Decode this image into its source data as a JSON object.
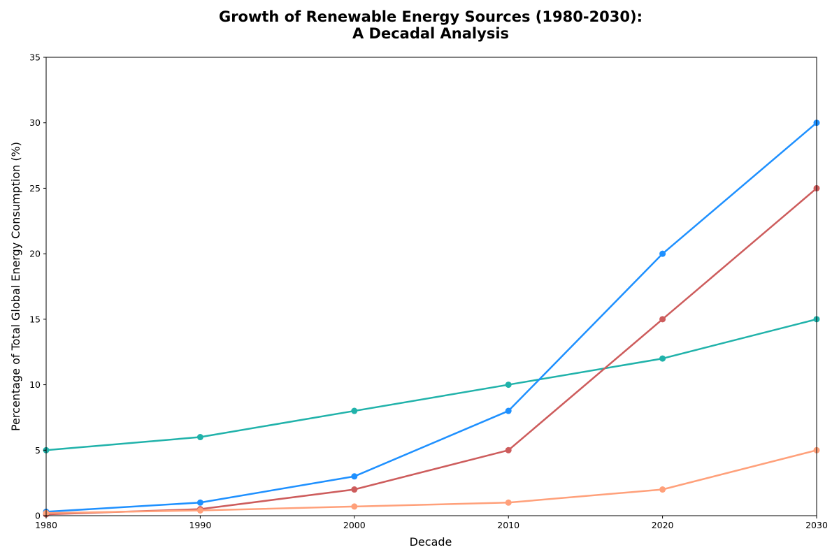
{
  "chart_data": {
    "type": "line",
    "title_lines": [
      "Growth of Renewable Energy Sources (1980-2030):",
      "A Decadal Analysis"
    ],
    "xlabel": "Decade",
    "ylabel": "Percentage of Total Global Energy Consumption (%)",
    "x": [
      1980,
      1990,
      2000,
      2010,
      2020,
      2030
    ],
    "xlim": [
      1980,
      2030
    ],
    "ylim": [
      0,
      35
    ],
    "xticks": [
      "1980",
      "1990",
      "2000",
      "2010",
      "2020",
      "2030"
    ],
    "yticks": [
      "0",
      "5",
      "10",
      "15",
      "20",
      "25",
      "30",
      "35"
    ],
    "grid": false,
    "legend": "none",
    "series": [
      {
        "color": "#20b2aa",
        "values": [
          5,
          6,
          8,
          10,
          12,
          15
        ]
      },
      {
        "color": "#1e90ff",
        "values": [
          0.3,
          1,
          3,
          8,
          20,
          30
        ]
      },
      {
        "color": "#cd5c5c",
        "values": [
          0.1,
          0.5,
          2,
          5,
          15,
          25
        ]
      },
      {
        "color": "#ffa07a",
        "values": [
          0.2,
          0.4,
          0.7,
          1,
          2,
          5
        ]
      }
    ]
  }
}
